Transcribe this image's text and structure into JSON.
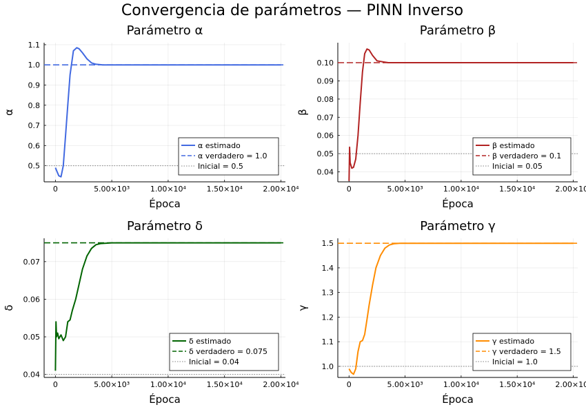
{
  "suptitle": "Convergencia de parámetros — PINN Inverso",
  "chart_data": [
    {
      "type": "line",
      "title": "Parámetro α",
      "xlabel": "Época",
      "ylabel": "α",
      "xlim": [
        -1000,
        20400
      ],
      "ylim": [
        0.42,
        1.11
      ],
      "xticks": [
        0,
        5000,
        10000,
        15000,
        20000
      ],
      "xtick_labels": [
        "0",
        "5.00×10³",
        "1.00×10⁴",
        "1.50×10⁴",
        "2.00×10⁴"
      ],
      "yticks": [
        0.5,
        0.6,
        0.7,
        0.8,
        0.9,
        1.0,
        1.1
      ],
      "ytick_labels": [
        "0.5",
        "0.6",
        "0.7",
        "0.8",
        "0.9",
        "1.0",
        "1.1"
      ],
      "grid": true,
      "legend_position": "bottom-right",
      "color": "#4169e1",
      "series": [
        {
          "name": "α estimado",
          "style": "solid",
          "x": [
            0,
            150,
            300,
            500,
            700,
            900,
            1100,
            1300,
            1600,
            1900,
            2100,
            2400,
            2800,
            3200,
            3600,
            4200,
            5000,
            7000,
            10000,
            15000,
            20000
          ],
          "y": [
            0.49,
            0.47,
            0.45,
            0.445,
            0.5,
            0.65,
            0.8,
            0.95,
            1.07,
            1.085,
            1.08,
            1.06,
            1.03,
            1.01,
            1.003,
            1.0,
            1.0,
            1.0,
            1.0,
            1.0,
            1.0
          ]
        },
        {
          "name": "α verdadero = 1.0",
          "style": "dash",
          "x": [
            -1000,
            20400
          ],
          "y": [
            1.0,
            1.0
          ]
        },
        {
          "name": "Inicial = 0.5",
          "style": "dot",
          "x": [
            -1000,
            20400
          ],
          "y": [
            0.5,
            0.5
          ]
        }
      ]
    },
    {
      "type": "line",
      "title": "Parámetro β",
      "xlabel": "Época",
      "ylabel": "β",
      "xlim": [
        -1000,
        20400
      ],
      "ylim": [
        0.0345,
        0.111
      ],
      "xticks": [
        0,
        5000,
        10000,
        15000,
        20000
      ],
      "xtick_labels": [
        "0",
        "5.00×10³",
        "1.00×10⁴",
        "1.50×10⁴",
        "2.00×10⁴"
      ],
      "yticks": [
        0.04,
        0.05,
        0.06,
        0.07,
        0.08,
        0.09,
        0.1
      ],
      "ytick_labels": [
        "0.04",
        "0.05",
        "0.06",
        "0.07",
        "0.08",
        "0.09",
        "0.10"
      ],
      "grid": true,
      "legend_position": "bottom-right",
      "color": "#b22222",
      "series": [
        {
          "name": "β estimado",
          "style": "solid",
          "x": [
            0,
            50,
            100,
            150,
            250,
            400,
            600,
            800,
            1000,
            1200,
            1400,
            1600,
            1800,
            2100,
            2500,
            3000,
            3500,
            4200,
            5000,
            10000,
            15000,
            20000
          ],
          "y": [
            0.035,
            0.0535,
            0.045,
            0.044,
            0.042,
            0.0425,
            0.047,
            0.06,
            0.078,
            0.095,
            0.105,
            0.1075,
            0.107,
            0.104,
            0.101,
            0.1005,
            0.1,
            0.1,
            0.1,
            0.1,
            0.1,
            0.1
          ]
        },
        {
          "name": "β verdadero = 0.1",
          "style": "dash",
          "x": [
            -1000,
            20400
          ],
          "y": [
            0.1,
            0.1
          ]
        },
        {
          "name": "Inicial = 0.05",
          "style": "dot",
          "x": [
            -1000,
            20400
          ],
          "y": [
            0.05,
            0.05
          ]
        }
      ]
    },
    {
      "type": "line",
      "title": "Parámetro δ",
      "xlabel": "Época",
      "ylabel": "δ",
      "xlim": [
        -1000,
        20400
      ],
      "ylim": [
        0.0392,
        0.0762
      ],
      "xticks": [
        0,
        5000,
        10000,
        15000,
        20000
      ],
      "xtick_labels": [
        "0",
        "5.00×10³",
        "1.00×10⁴",
        "1.50×10⁴",
        "2.00×10⁴"
      ],
      "yticks": [
        0.04,
        0.05,
        0.06,
        0.07
      ],
      "ytick_labels": [
        "0.04",
        "0.05",
        "0.06",
        "0.07"
      ],
      "grid": true,
      "legend_position": "bottom-right",
      "color": "#006400",
      "series": [
        {
          "name": "δ estimado",
          "style": "solid",
          "x": [
            0,
            50,
            100,
            200,
            300,
            500,
            700,
            900,
            1100,
            1300,
            1500,
            1800,
            2100,
            2400,
            2800,
            3200,
            3600,
            4000,
            5000,
            10000,
            15000,
            20000
          ],
          "y": [
            0.041,
            0.054,
            0.05,
            0.051,
            0.0495,
            0.0505,
            0.049,
            0.05,
            0.054,
            0.0545,
            0.057,
            0.06,
            0.064,
            0.068,
            0.0715,
            0.0735,
            0.0745,
            0.0748,
            0.075,
            0.075,
            0.075,
            0.075
          ]
        },
        {
          "name": "δ verdadero = 0.075",
          "style": "dash",
          "x": [
            -1000,
            20400
          ],
          "y": [
            0.075,
            0.075
          ]
        },
        {
          "name": "Inicial = 0.04",
          "style": "dot",
          "x": [
            -1000,
            20400
          ],
          "y": [
            0.04,
            0.04
          ]
        }
      ]
    },
    {
      "type": "line",
      "title": "Parámetro γ",
      "xlabel": "Época",
      "ylabel": "γ",
      "xlim": [
        -1000,
        20400
      ],
      "ylim": [
        0.955,
        1.52
      ],
      "xticks": [
        0,
        5000,
        10000,
        15000,
        20000
      ],
      "xtick_labels": [
        "0",
        "5.00×10³",
        "1.00×10⁴",
        "1.50×10⁴",
        "2.00×10⁴"
      ],
      "yticks": [
        1.0,
        1.1,
        1.2,
        1.3,
        1.4,
        1.5
      ],
      "ytick_labels": [
        "1.0",
        "1.1",
        "1.2",
        "1.3",
        "1.4",
        "1.5"
      ],
      "grid": true,
      "legend_position": "bottom-right",
      "color": "#ff8c00",
      "series": [
        {
          "name": "γ estimado",
          "style": "solid",
          "x": [
            0,
            200,
            400,
            600,
            800,
            1000,
            1200,
            1400,
            1600,
            1800,
            2100,
            2400,
            2800,
            3200,
            3600,
            4000,
            4500,
            5000,
            10000,
            15000,
            20000
          ],
          "y": [
            0.99,
            0.975,
            0.968,
            0.99,
            1.06,
            1.1,
            1.105,
            1.13,
            1.19,
            1.25,
            1.33,
            1.4,
            1.45,
            1.48,
            1.493,
            1.498,
            1.5,
            1.5,
            1.5,
            1.5,
            1.5
          ]
        },
        {
          "name": "γ verdadero = 1.5",
          "style": "dash",
          "x": [
            -1000,
            20400
          ],
          "y": [
            1.5,
            1.5
          ]
        },
        {
          "name": "Inicial = 1.0",
          "style": "dot",
          "x": [
            -1000,
            20400
          ],
          "y": [
            1.0,
            1.0
          ]
        }
      ]
    }
  ]
}
